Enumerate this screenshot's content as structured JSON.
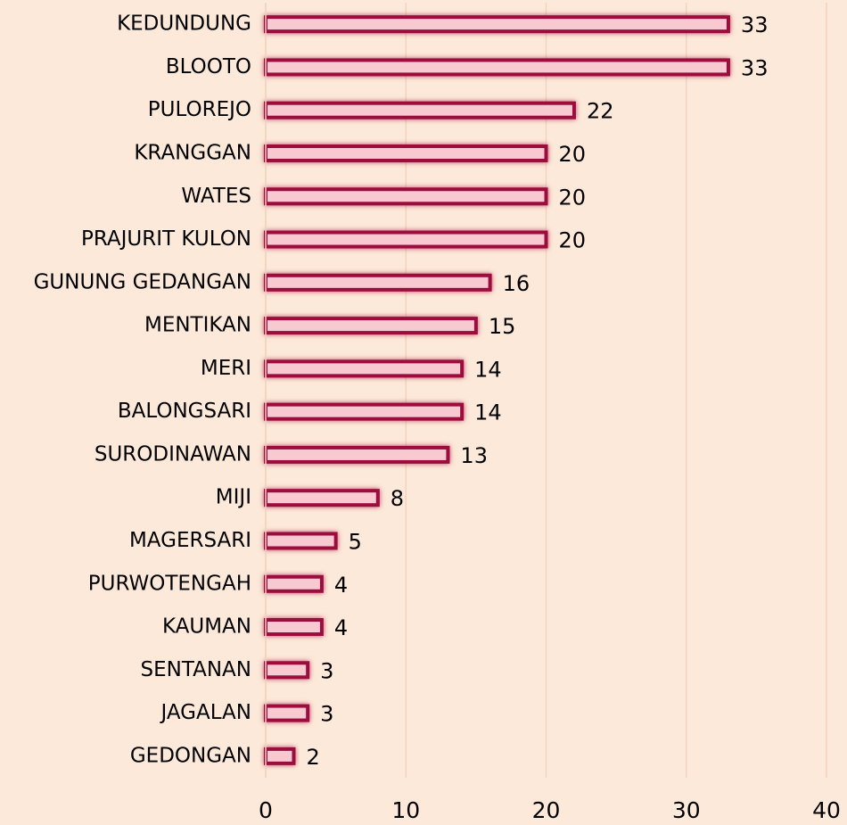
{
  "chart_data": {
    "type": "bar",
    "orientation": "horizontal",
    "categories": [
      "KEDUNDUNG",
      "BLOOTO",
      "PULOREJO",
      "KRANGGAN",
      "WATES",
      "PRAJURIT KULON",
      "GUNUNG GEDANGAN",
      "MENTIKAN",
      "MERI",
      "BALONGSARI",
      "SURODINAWAN",
      "MIJI",
      "MAGERSARI",
      "PURWOTENGAH",
      "KAUMAN",
      "SENTANAN",
      "JAGALAN",
      "GEDONGAN"
    ],
    "values": [
      33,
      33,
      22,
      20,
      20,
      20,
      16,
      15,
      14,
      14,
      13,
      8,
      5,
      4,
      4,
      3,
      3,
      2
    ],
    "color": "#f9c9d2",
    "edge_color": "#9c0b3c",
    "xlim": [
      0,
      40
    ],
    "xticks": [
      0,
      10,
      20,
      30,
      40
    ],
    "grid": true
  }
}
